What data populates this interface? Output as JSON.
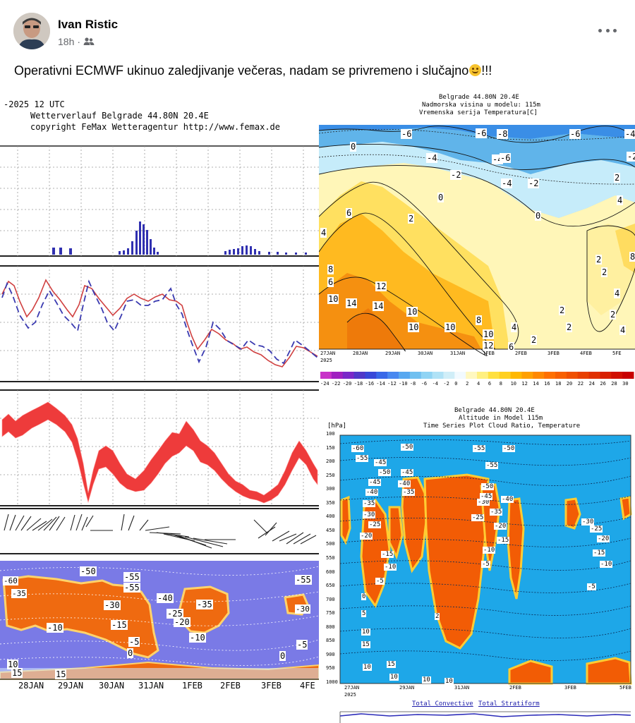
{
  "post": {
    "author": "Ivan Ristic",
    "time": "18h",
    "audience_icon": "friends-icon",
    "text": "Operativni ECMWF ukinuo zaledjivanje večeras, nadam se privremeno i slučajno",
    "text_suffix": "!!!"
  },
  "left_chart": {
    "header_line1": "-2025 12 UTC",
    "header_line2": "Wetterverlauf Belgrade   44.80N 20.4E",
    "header_line3": "copyright FeMax Wetteragentur http://www.femax.de",
    "date_labels": [
      "28JAN",
      "29JAN",
      "30JAN",
      "31JAN",
      "1FEB",
      "2FEB",
      "3FEB",
      "4FE"
    ],
    "contour_labels": [
      "-50",
      "-55",
      "-55",
      "-60",
      "-35",
      "-40",
      "-30",
      "-35",
      "-25",
      "-20",
      "-10",
      "-15",
      "-10",
      "-5",
      "0",
      "-5",
      "0",
      "10",
      "15",
      "15",
      "-30",
      "-55"
    ],
    "colors": {
      "precip": "#3030b0",
      "dewpoint": "#3a3ab0",
      "temp_line": "#d04040",
      "band": "#ee3b3b",
      "cloud_bg": "#7a7ae6",
      "cloud_hot": "#ef6a10"
    }
  },
  "top_right_chart": {
    "title1": "Belgrade   44.80N 20.4E",
    "title2": "Nadmorska visina u modelu: 115m",
    "title3": "Vremenska serija Temperatura[C]",
    "date_labels": [
      "27JAN",
      "28JAN",
      "29JAN",
      "30JAN",
      "31JAN",
      "1FEB",
      "2FEB",
      "3FEB",
      "4FEB",
      "5FE"
    ],
    "year_label": "2025",
    "contour_labels": [
      "-6",
      "-6",
      "-8",
      "-6",
      "-4",
      "-4",
      "-4",
      "-6",
      "-2",
      "-2",
      "-4",
      "-2",
      "0",
      "0",
      "0",
      "2",
      "2",
      "4",
      "4",
      "6",
      "8",
      "12",
      "14",
      "10",
      "10",
      "14",
      "10",
      "8",
      "10",
      "10",
      "12",
      "6",
      "4",
      "2",
      "2",
      "2",
      "4",
      "4",
      "2",
      "2",
      "2",
      "8",
      "6"
    ],
    "legend_labels": [
      "-24",
      "-22",
      "-20",
      "-18",
      "-16",
      "-14",
      "-12",
      "-10",
      "-8",
      "-6",
      "-4",
      "-2",
      "0",
      "2",
      "4",
      "6",
      "8",
      "10",
      "12",
      "14",
      "16",
      "18",
      "20",
      "22",
      "24",
      "26",
      "28",
      "30"
    ],
    "legend_colors": [
      "#c832c8",
      "#a020c0",
      "#7a28c8",
      "#5038c8",
      "#3848d8",
      "#3868e8",
      "#4888f0",
      "#58a8f0",
      "#70c0f0",
      "#90d4f4",
      "#b0e2f6",
      "#d0eef8",
      "#f2faff",
      "#fff8c0",
      "#fff080",
      "#ffe040",
      "#ffd020",
      "#ffb800",
      "#ffa000",
      "#ff8800",
      "#ff7000",
      "#f86000",
      "#f05000",
      "#e84000",
      "#e03000",
      "#d82000",
      "#d01000",
      "#c80000"
    ]
  },
  "bottom_right_chart": {
    "title1": "Belgrade   44.80N 20.4E",
    "title2": "Altitude in Model 115m",
    "title3": "Time Series Plot Cloud Ratio, Temperature",
    "y_unit": "[hPa]",
    "y_ticks": [
      "100",
      "150",
      "200",
      "250",
      "300",
      "350",
      "400",
      "450",
      "500",
      "550",
      "600",
      "650",
      "700",
      "750",
      "800",
      "850",
      "900",
      "950",
      "1000"
    ],
    "contour_labels": [
      "-60",
      "-55",
      "-50",
      "-55",
      "-50",
      "-55",
      "-45",
      "-50",
      "-45",
      "-40",
      "-35",
      "-30",
      "-25",
      "-20",
      "-15",
      "-10",
      "-5",
      "0",
      "5",
      "10",
      "15",
      "-45",
      "-40",
      "-35",
      "-30",
      "-25",
      "-20",
      "-15",
      "-10",
      "-5",
      "2",
      "-50",
      "-45",
      "-40",
      "-35",
      "-30",
      "-25",
      "-20",
      "-15",
      "-10",
      "-5",
      "10",
      "15",
      "10",
      "10",
      "10"
    ],
    "date_labels": [
      "27JAN",
      "29JAN",
      "31JAN",
      "2FEB",
      "3FEB",
      "5FEB"
    ],
    "year_label": "2025",
    "legend_left": "Total Convective",
    "legend_right": "Total Stratiform",
    "colors": {
      "bg": "#1ea7e8",
      "warm": "#f25c05",
      "warm_edge": "#ffcc33"
    }
  }
}
